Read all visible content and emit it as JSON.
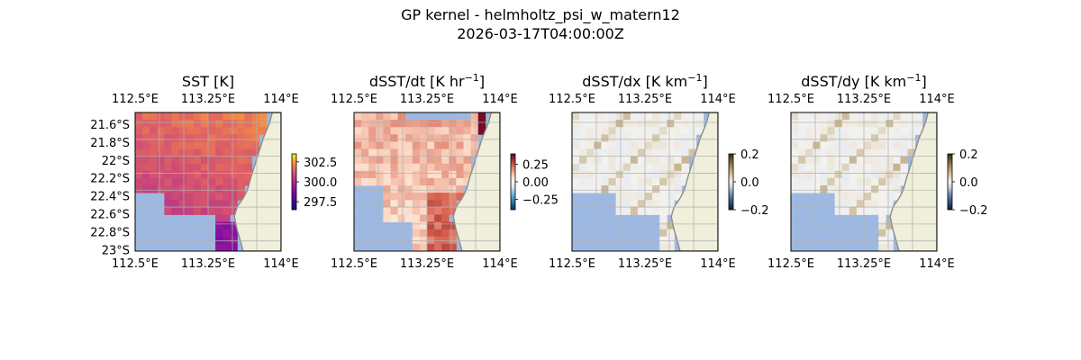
{
  "figure": {
    "title_line1": "GP kernel - helmholtz_psi_w_matern12",
    "title_line2": "2026-03-17T04:00:00Z"
  },
  "map_ticks": {
    "lon_labels": [
      "112.5°E",
      "113.25°E",
      "114°E"
    ],
    "lat_labels": [
      "21.6°S",
      "21.8°S",
      "22°S",
      "22.2°S",
      "22.4°S",
      "22.6°S",
      "22.8°S",
      "23°S"
    ]
  },
  "colors": {
    "land": "#efefdb",
    "masked_ocean": "#9db9e2",
    "coastline": "#8c8c8c",
    "grid": "#b0b0b0"
  },
  "chart_data": [
    {
      "type": "heatmap",
      "panel": "sst",
      "title": "SST [K]",
      "title_main": "SST [K]",
      "title_sup": "",
      "title_tail": "",
      "colormap": "plasma-like (warm)",
      "colorbar_ticks": [
        "302.5",
        "300.0",
        "297.5"
      ],
      "colorbar_tick_values": [
        302.5,
        300.0,
        297.5
      ],
      "range": [
        296.5,
        303.5
      ],
      "lon_range": [
        112.5,
        114.0
      ],
      "lat_range": [
        -23.0,
        -21.5
      ],
      "show_lat_labels": true
    },
    {
      "type": "heatmap",
      "panel": "dsst_dt",
      "title": "dSST/dt [K hr−1]",
      "title_main": "dSST/dt [K hr",
      "title_sup": "−1",
      "title_tail": "]",
      "colormap": "RdBu_r",
      "colorbar_ticks": [
        "0.25",
        "0.00",
        "−0.25"
      ],
      "colorbar_tick_values": [
        0.25,
        0.0,
        -0.25
      ],
      "range": [
        -0.4,
        0.4
      ],
      "lon_range": [
        112.5,
        114.0
      ],
      "lat_range": [
        -23.0,
        -21.5
      ],
      "show_lat_labels": false
    },
    {
      "type": "heatmap",
      "panel": "dsst_dx",
      "title": "dSST/dx [K km−1]",
      "title_main": "dSST/dx [K km",
      "title_sup": "−1",
      "title_tail": "]",
      "colormap": "diverging (blue-white-brown)",
      "colorbar_ticks": [
        "0.2",
        "0.0",
        "−0.2"
      ],
      "colorbar_tick_values": [
        0.2,
        0.0,
        -0.2
      ],
      "range": [
        -0.2,
        0.2
      ],
      "lon_range": [
        112.5,
        114.0
      ],
      "lat_range": [
        -23.0,
        -21.5
      ],
      "show_lat_labels": false
    },
    {
      "type": "heatmap",
      "panel": "dsst_dy",
      "title": "dSST/dy [K km−1]",
      "title_main": "dSST/dy [K km",
      "title_sup": "−1",
      "title_tail": "]",
      "colormap": "diverging (blue-white-brown)",
      "colorbar_ticks": [
        "0.2",
        "0.0",
        "−0.2"
      ],
      "colorbar_tick_values": [
        0.2,
        0.0,
        -0.2
      ],
      "range": [
        -0.2,
        0.2
      ],
      "lon_range": [
        112.5,
        114.0
      ],
      "lat_range": [
        -23.0,
        -21.5
      ],
      "show_lat_labels": false
    }
  ]
}
